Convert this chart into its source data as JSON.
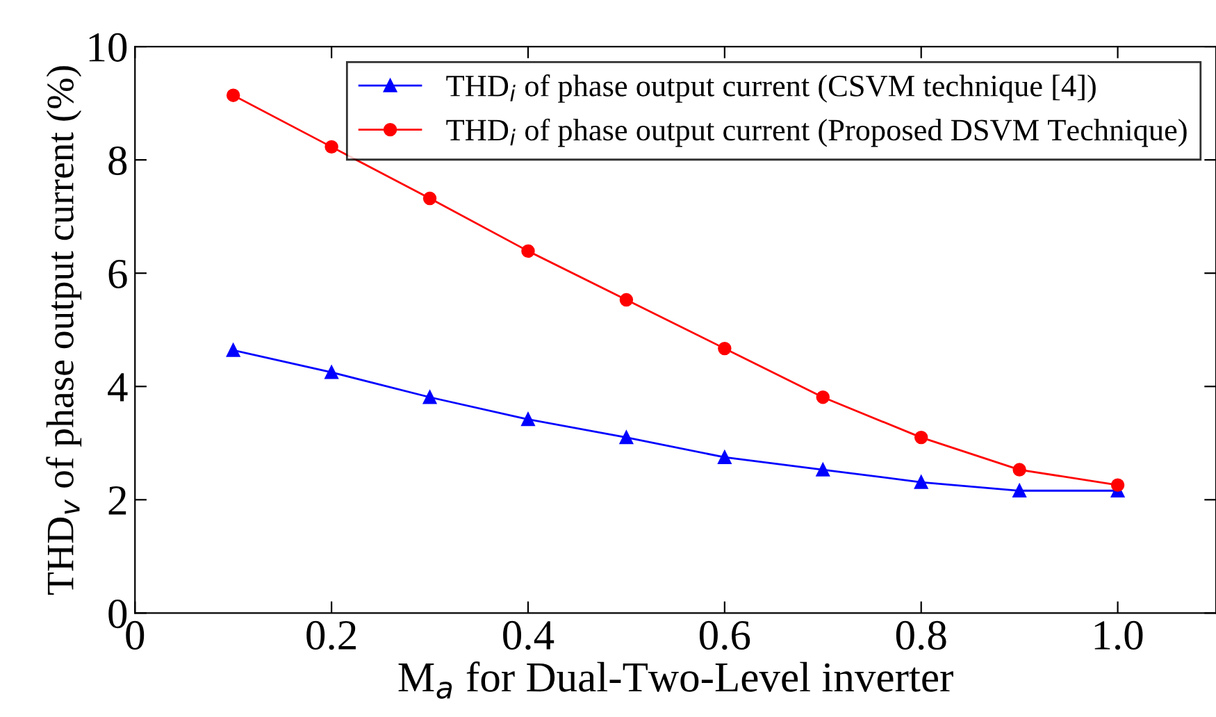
{
  "chart_data": {
    "type": "line",
    "xlabel": "M$_{a}$ for Dual-Two-Level inverter",
    "ylabel": "THD$_{v}$ of phase output current (%)",
    "x": [
      0.1,
      0.2,
      0.3,
      0.4,
      0.5,
      0.6,
      0.7,
      0.8,
      0.9,
      1.0
    ],
    "series": [
      {
        "name": "THD$_{i}$ of phase output current (CSVM technique [4])",
        "color": "#0000ff",
        "marker": "triangle",
        "values": [
          4.64,
          4.25,
          3.81,
          3.42,
          3.1,
          2.75,
          2.53,
          2.31,
          2.16,
          2.16
        ]
      },
      {
        "name": "THD$_{i}$ of phase output current (Proposed DSVM Technique)",
        "color": "#ff0000",
        "marker": "circle",
        "values": [
          9.14,
          8.23,
          7.32,
          6.39,
          5.53,
          4.67,
          3.81,
          3.1,
          2.53,
          2.26
        ]
      }
    ],
    "xlim": [
      0,
      1.1
    ],
    "xticks": [
      0,
      0.2,
      0.4,
      0.6,
      0.8,
      {
        "value": 1.0,
        "label": "1.0"
      }
    ],
    "ylim": [
      0,
      10
    ],
    "yticks": [
      0,
      2,
      4,
      6,
      8,
      10
    ],
    "grid": false,
    "legend": "top right",
    "line_style": "solid"
  }
}
